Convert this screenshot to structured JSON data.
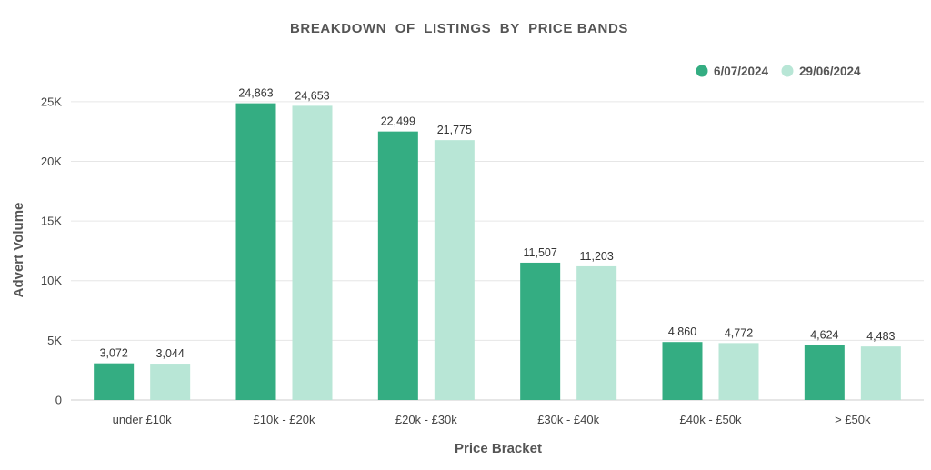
{
  "chart_data": {
    "type": "bar",
    "title": "BREAKDOWN  OF  LISTINGS  BY  PRICE BANDS",
    "xlabel": "Price Bracket",
    "ylabel": "Advert Volume",
    "categories": [
      "under £10k",
      "£10k - £20k",
      "£20k - £30k",
      "£30k - £40k",
      "£40k - £50k",
      "> £50k"
    ],
    "series": [
      {
        "name": "6/07/2024",
        "color": "#34ad82",
        "values": [
          3072,
          24863,
          22499,
          11507,
          4860,
          4624
        ],
        "labels": [
          "3,072",
          "24,863",
          "22,499",
          "11,507",
          "4,860",
          "4,624"
        ]
      },
      {
        "name": "29/06/2024",
        "color": "#b8e6d6",
        "values": [
          3044,
          24653,
          21775,
          11203,
          4772,
          4483
        ],
        "labels": [
          "3,044",
          "24,653",
          "21,775",
          "11,203",
          "4,772",
          "4,483"
        ]
      }
    ],
    "ylim": [
      0,
      27500
    ],
    "yticks": [
      0,
      5000,
      10000,
      15000,
      20000,
      25000
    ],
    "ytick_labels": [
      "0",
      "5K",
      "10K",
      "15K",
      "20K",
      "25K"
    ],
    "grid": true,
    "legend": "top-right"
  }
}
